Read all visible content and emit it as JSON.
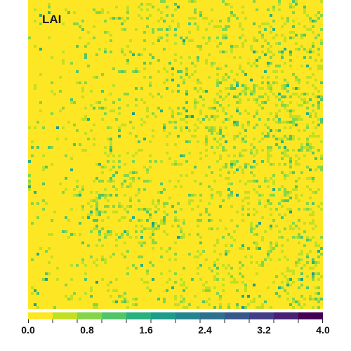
{
  "map": {
    "title": "LAI",
    "base_color": "#fde725"
  },
  "colorbar": {
    "min": 0.0,
    "max": 4.0,
    "tick_labels": [
      "0.0",
      "0.8",
      "1.6",
      "2.4",
      "3.2",
      "4.0"
    ],
    "tick_values": [
      0.0,
      0.8,
      1.6,
      2.4,
      3.2,
      4.0
    ],
    "colors": [
      "#fde725",
      "#c2df23",
      "#86d549",
      "#52c569",
      "#2ab07f",
      "#1e9b8a",
      "#25858e",
      "#2d708e",
      "#38588c",
      "#433e85",
      "#482173",
      "#440154"
    ]
  }
}
